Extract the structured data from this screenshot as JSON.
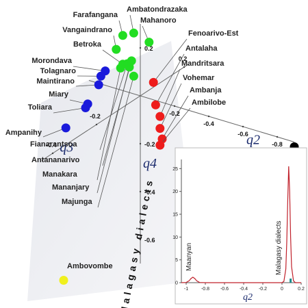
{
  "chart_data": [
    {
      "type": "scatter3d",
      "axes": [
        {
          "name": "q2",
          "lim": [
            -0.9,
            0.3
          ],
          "ticks": [
            -0.2,
            -0.4,
            -0.6,
            -0.8
          ]
        },
        {
          "name": "q3",
          "lim": [
            -0.45,
            0.22
          ],
          "ticks": [
            -0.4,
            -0.2,
            0.2
          ]
        },
        {
          "name": "q4",
          "lim": [
            -0.7,
            0.3
          ],
          "ticks": [
            0.2,
            -0.2,
            -0.4,
            -0.6
          ]
        }
      ],
      "annotation": "Malagasy dialects",
      "series": [
        {
          "color": "#22dd22",
          "labels": [
            "Farafangana",
            "Ambatondrazaka",
            "Mahanoro",
            "Vangaindrano",
            "Betroka",
            "Fianarantsoa",
            "Antananarivo",
            "Manakara",
            "Mananjary",
            "Majunga"
          ],
          "q2": [
            0,
            0,
            0,
            0,
            0,
            0,
            0,
            0,
            0,
            0
          ],
          "q3": [
            -0.08,
            -0.03,
            0.04,
            -0.11,
            -0.08,
            -0.06,
            -0.04,
            -0.09,
            -0.05,
            -0.03
          ],
          "q4": [
            0.3,
            0.28,
            0.2,
            0.26,
            0.18,
            0.17,
            0.17,
            0.17,
            0.15,
            0.1
          ]
        },
        {
          "color": "#1a1adb",
          "labels": [
            "Morondava",
            "Tolagnaro",
            "Maintirano",
            "Miary",
            "Toliara",
            "Ampanihy"
          ],
          "q2": [
            0,
            0,
            0,
            0,
            0,
            0
          ],
          "q3": [
            -0.16,
            -0.18,
            -0.19,
            -0.24,
            -0.25,
            -0.34
          ],
          "q4": [
            0.2,
            0.19,
            0.16,
            0.11,
            0.1,
            0.07
          ]
        },
        {
          "color": "#ee1c1c",
          "labels": [
            "Fenoarivo-Est",
            "Antalaha",
            "Mandritsara",
            "Vohemar",
            "Ambanja",
            "Ambilobe"
          ],
          "q2": [
            0,
            0,
            0,
            0,
            0,
            0
          ],
          "q3": [
            0.06,
            0.07,
            0.09,
            0.09,
            0.1,
            0.09
          ],
          "q4": [
            0.02,
            -0.08,
            -0.14,
            -0.19,
            -0.24,
            -0.26
          ]
        },
        {
          "color": "#f0f01e",
          "labels": [
            "Ambovombe"
          ],
          "q2": [
            0
          ],
          "q3": [
            -0.35
          ],
          "q4": [
            -0.56
          ]
        },
        {
          "color": "#000000",
          "labels": [
            "Maanyan"
          ],
          "q2": [
            -0.9
          ],
          "q3": [
            0
          ],
          "q4": [
            -0.02
          ]
        }
      ]
    },
    {
      "type": "line",
      "xlabel": "q2",
      "annotations": [
        "Maanyan",
        "Malagasy dialects"
      ],
      "color": "#c0202a",
      "x": [
        -1.05,
        -1.0,
        -0.97,
        -0.95,
        -0.93,
        -0.91,
        -0.89,
        -0.86,
        -0.8,
        -0.6,
        -0.4,
        -0.2,
        0,
        0.02,
        0.04,
        0.05,
        0.06,
        0.07,
        0.08,
        0.09,
        0.1,
        0.12,
        0.14,
        0.2
      ],
      "values": [
        0,
        0.05,
        0.4,
        0.9,
        1.2,
        0.9,
        0.4,
        0.05,
        0,
        0,
        0,
        0,
        0,
        0.3,
        3,
        9,
        18,
        25.5,
        20,
        10,
        3.5,
        0.4,
        0,
        0
      ],
      "rug": [
        0.09
      ],
      "rug_color": "#1a8a8a",
      "xlim": [
        -1.05,
        0.2
      ],
      "xticks": [
        -1,
        -0.8,
        -0.6,
        -0.4,
        -0.2,
        0,
        0.2
      ],
      "ylim": [
        0,
        27
      ],
      "yticks": [
        0,
        5,
        10,
        15,
        20,
        25
      ]
    }
  ]
}
